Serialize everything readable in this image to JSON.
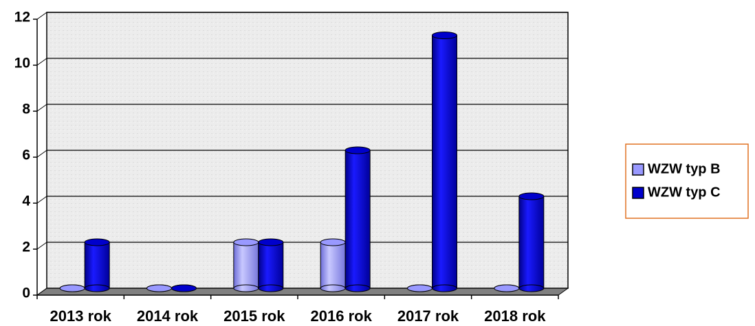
{
  "chart_data": {
    "type": "bar",
    "categories": [
      "2013 rok",
      "2014 rok",
      "2015 rok",
      "2016 rok",
      "2017 rok",
      "2018 rok"
    ],
    "series": [
      {
        "name": "WZW typ B",
        "color": "#9999ff",
        "values": [
          0,
          0,
          2,
          2,
          0,
          0
        ]
      },
      {
        "name": "WZW typ C",
        "color": "#0000cc",
        "values": [
          2,
          0,
          2,
          6,
          11,
          4
        ]
      }
    ],
    "ylim": [
      0,
      12
    ],
    "yticks": [
      0,
      2,
      4,
      6,
      8,
      10,
      12
    ],
    "grid": true,
    "legend": "right"
  }
}
